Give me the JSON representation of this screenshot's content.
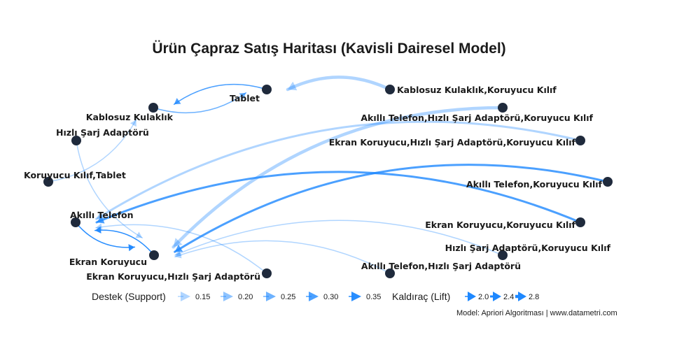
{
  "title": "Ürün Çapraz Satış Haritası (Kavisli Dairesel Model)",
  "caption": "Model: Apriori Algoritması | www.datametri.com",
  "colors": {
    "edge": "#1E88FF",
    "node": "#1F2A3C",
    "text": "#1a1a1a"
  },
  "legend": {
    "support_title": "Destek (Support)",
    "support_values": [
      "0.15",
      "0.20",
      "0.25",
      "0.30",
      "0.35"
    ],
    "lift_title": "Kaldıraç (Lift)",
    "lift_values": [
      "2.0",
      "2.4",
      "2.8"
    ]
  },
  "nodes": [
    "Tablet",
    "Kablosuz Kulaklık",
    "Hızlı Şarj Adaptörü",
    "Koruyucu Kılıf,Tablet",
    "Akıllı Telefon",
    "Ekran Koruyucu",
    "Ekran Koruyucu,Hızlı Şarj Adaptörü",
    "Kablosuz Kulaklık,Koruyucu Kılıf",
    "Akıllı Telefon,Hızlı Şarj Adaptörü,Koruyucu Kılıf",
    "Ekran Koruyucu,Hızlı Şarj Adaptörü,Koruyucu Kılıf",
    "Akıllı Telefon,Koruyucu Kılıf",
    "Ekran Koruyucu,Koruyucu Kılıf",
    "Hızlı Şarj Adaptörü,Koruyucu Kılıf",
    "Akıllı Telefon,Hızlı Şarj Adaptörü"
  ],
  "edges": [
    {
      "from": 7,
      "to": 0,
      "support": 0.15,
      "lift": 2.8
    },
    {
      "from": 0,
      "to": 1,
      "support": 0.3,
      "lift": 2.0
    },
    {
      "from": 1,
      "to": 0,
      "support": 0.25,
      "lift": 2.0
    },
    {
      "from": 3,
      "to": 1,
      "support": 0.15,
      "lift": 2.0
    },
    {
      "from": 2,
      "to": 5,
      "support": 0.15,
      "lift": 2.0
    },
    {
      "from": 6,
      "to": 4,
      "support": 0.15,
      "lift": 2.0
    },
    {
      "from": 8,
      "to": 5,
      "support": 0.15,
      "lift": 2.8
    },
    {
      "from": 9,
      "to": 4,
      "support": 0.15,
      "lift": 2.4
    },
    {
      "from": 10,
      "to": 5,
      "support": 0.3,
      "lift": 2.4
    },
    {
      "from": 11,
      "to": 4,
      "support": 0.3,
      "lift": 2.4
    },
    {
      "from": 12,
      "to": 5,
      "support": 0.15,
      "lift": 2.0
    },
    {
      "from": 13,
      "to": 5,
      "support": 0.15,
      "lift": 2.0
    },
    {
      "from": 4,
      "to": 5,
      "support": 0.35,
      "lift": 2.0
    },
    {
      "from": 5,
      "to": 4,
      "support": 0.35,
      "lift": 2.0
    }
  ]
}
